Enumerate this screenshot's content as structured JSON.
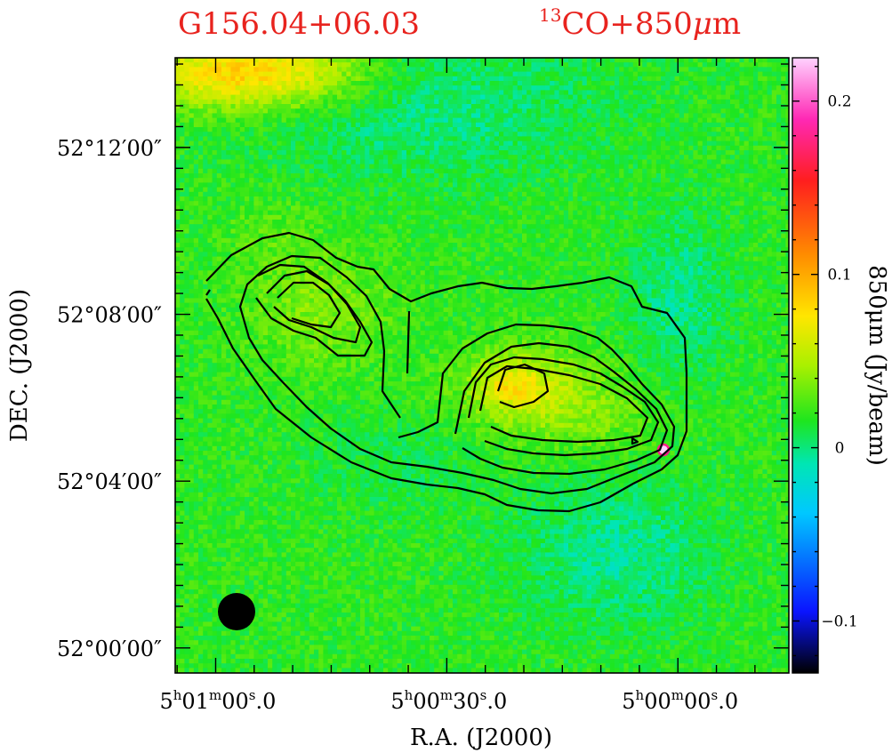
{
  "chart_data": {
    "type": "heatmap",
    "title_source": "G156.04+06.03",
    "title_tracer_sup": "13",
    "title_tracer": "CO+850",
    "title_unit_mu": "μ",
    "title_unit_m": "m",
    "xlabel": "R.A. (J2000)",
    "ylabel": "DEC. (J2000)",
    "colorbar_label": "850μm (Jy/beam)",
    "colorbar_ticks": [
      {
        "value": 0.2,
        "label": "0.2"
      },
      {
        "value": 0.1,
        "label": "0.1"
      },
      {
        "value": 0,
        "label": "0"
      },
      {
        "value": -0.1,
        "label": "−0.1"
      }
    ],
    "colorbar_range": [
      -0.13,
      0.225
    ],
    "x_ticks": [
      {
        "ra_s": 60,
        "h": "5",
        "m": "01",
        "s": "00",
        "frac": "0"
      },
      {
        "ra_s": 30,
        "h": "5",
        "m": "00",
        "s": "30",
        "frac": "0"
      },
      {
        "ra_s": 0,
        "h": "5",
        "m": "00",
        "s": "00",
        "frac": "0"
      }
    ],
    "y_ticks": [
      {
        "dec_min": 12,
        "label": "52°12′00″"
      },
      {
        "dec_min": 8,
        "label": "52°08′00″"
      },
      {
        "dec_min": 4,
        "label": "52°04′00″"
      },
      {
        "dec_min": 0,
        "label": "52°00′00″"
      }
    ],
    "xlim_ra_seconds_offset": [
      65.25,
      -14.4
    ],
    "ylim_dec_arcmin": [
      -0.6,
      14.15
    ],
    "contour_level_count": 7,
    "beam": "filled black circle, lower-left",
    "colormap": [
      "#000000",
      "#0a14ff",
      "#00c8ff",
      "#00e6b4",
      "#1ee61e",
      "#aaf000",
      "#ffe600",
      "#ff8c00",
      "#ff1e1e",
      "#ff28b4",
      "#ffd2ff"
    ],
    "grid": false
  }
}
